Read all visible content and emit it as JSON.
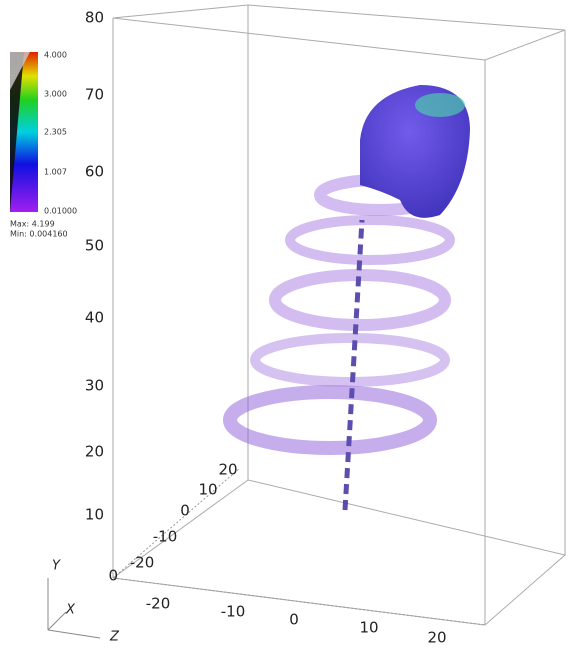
{
  "legend": {
    "ticks": [
      "4.000",
      "3.000",
      "2.305",
      "1.007",
      "0.01000"
    ],
    "max": "Max: 4.199",
    "min": "Min: 0.004160"
  },
  "axes": {
    "y": {
      "ticks": [
        "80",
        "70",
        "60",
        "50",
        "40",
        "30",
        "20",
        "10",
        "0"
      ]
    },
    "z": {
      "ticks": [
        "20",
        "10",
        "0",
        "-10",
        "-20"
      ]
    },
    "x": {
      "ticks": [
        "-20",
        "-10",
        "0",
        "10",
        "20"
      ]
    }
  },
  "triad": {
    "y": "Y",
    "x": "X",
    "z": "Z"
  }
}
